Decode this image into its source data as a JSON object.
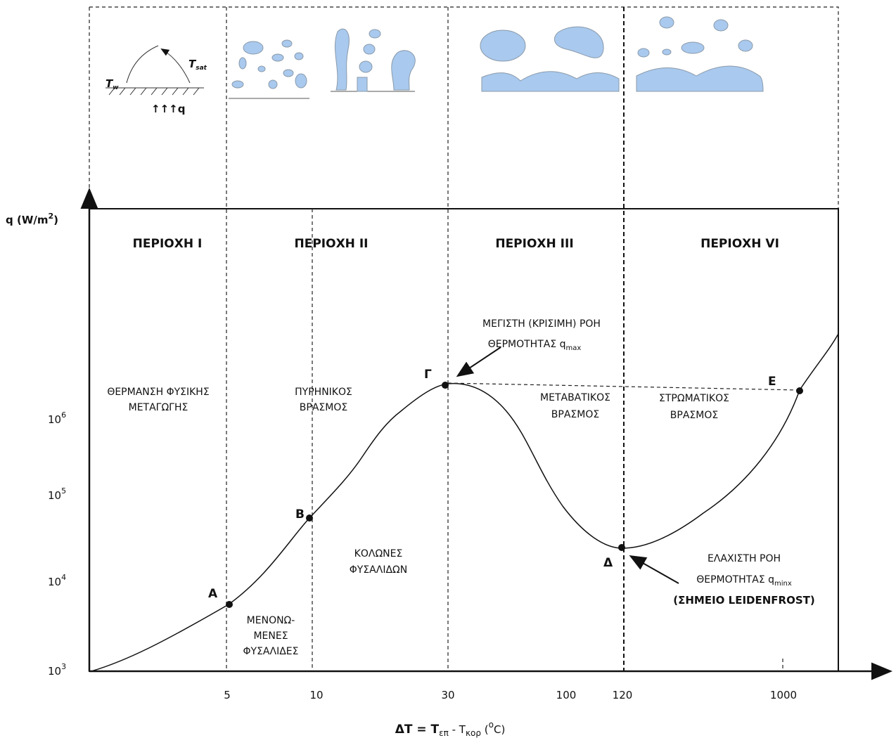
{
  "axis": {
    "y_label": "q (W/m",
    "y_label_exp": "2",
    "y_label_end": ")",
    "x_label_start": "ΔT = T",
    "x_label_sub1": "επ",
    "x_label_mid": " - T",
    "x_label_sub2": "κορ",
    "x_label_end": " (",
    "x_label_deg": "o",
    "x_label_unit": "C)",
    "x_ticks": [
      "5",
      "10",
      "30",
      "100",
      "120",
      "1000"
    ],
    "y_ticks": [
      {
        "base": "10",
        "exponent": "3"
      },
      {
        "base": "10",
        "exponent": "4"
      },
      {
        "base": "10",
        "exponent": "5"
      },
      {
        "base": "10",
        "exponent": "6"
      }
    ]
  },
  "regions": [
    "ΠΕΡΙΟΧΗ I",
    "ΠΕΡΙΟΧΗ II",
    "ΠΕΡΙΟΧΗ III",
    "ΠΕΡΙΟΧΗ VI"
  ],
  "points": [
    "A",
    "B",
    "Γ",
    "Δ",
    "E"
  ],
  "illustration": {
    "t_sat": "T",
    "t_sat_sub": "sat",
    "t_w": "T",
    "t_w_sub": "w",
    "q": "↑↑↑q"
  },
  "annotations": {
    "free_convection": [
      "ΘΕΡΜΑΝΣΗ ΦΥΣΙΚΗΣ",
      "ΜΕΤΑΓΩΓΗΣ"
    ],
    "nucleate": [
      "ΠΥΡΗΝΙΚΟΣ",
      "ΒΡΑΣΜΟΣ"
    ],
    "transition": [
      "ΜΕΤΑΒΑΤΙΚΟΣ",
      "ΒΡΑΣΜΟΣ"
    ],
    "film": [
      "ΣΤΡΩΜΑΤΙΚΟΣ",
      "ΒΡΑΣΜΟΣ"
    ],
    "isolated_bubbles": [
      "ΜΕΝΟΝΩ-",
      "ΜΕΝΕΣ",
      "ΦΥΣΑΛΙΔΕΣ"
    ],
    "columns": [
      "ΚΟΛΩΝΕΣ",
      "ΦΥΣΑΛΙΔΩΝ"
    ],
    "qmax": {
      "line1": "ΜΕΓΙΣΤΗ (ΚΡΙΣΙΜΗ) ΡΟΗ",
      "line2": "ΘΕΡΜΟΤΗΤΑΣ q",
      "sub": "max"
    },
    "qmin": {
      "line1": "ΕΛΑΧΙΣΤΗ ΡΟΗ",
      "line2": "ΘΕΡΜΟΤΗΤΑΣ q",
      "sub": "minx",
      "note": "(ΣΗΜΕΙΟ LEIDENFROST)"
    }
  }
}
